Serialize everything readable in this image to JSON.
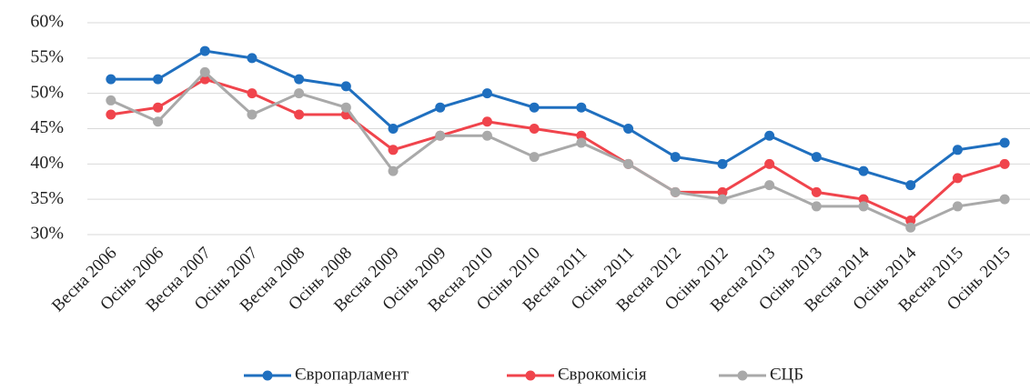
{
  "chart_data": {
    "type": "line",
    "categories": [
      "Весна 2006",
      "Осінь 2006",
      "Весна 2007",
      "Осінь 2007",
      "Весна 2008",
      "Осінь 2008",
      "Весна 2009",
      "Осінь 2009",
      "Весна 2010",
      "Осінь 2010",
      "Весна 2011",
      "Осінь 2011",
      "Весна 2012",
      "Осінь 2012",
      "Весна 2013",
      "Осінь 2013",
      "Весна 2014",
      "Осінь 2014",
      "Весна 2015",
      "Осінь 2015"
    ],
    "series": [
      {
        "name": "Європарламент",
        "color": "#1f6fbf",
        "values": [
          52,
          52,
          56,
          55,
          52,
          51,
          45,
          48,
          50,
          48,
          48,
          45,
          41,
          40,
          44,
          41,
          39,
          37,
          42,
          43
        ]
      },
      {
        "name": "Єврокомісія",
        "color": "#f0444c",
        "values": [
          47,
          48,
          52,
          50,
          47,
          47,
          42,
          44,
          46,
          45,
          44,
          40,
          36,
          36,
          40,
          36,
          35,
          32,
          38,
          40
        ]
      },
      {
        "name": "ЄЦБ",
        "color": "#a9a9a9",
        "values": [
          49,
          46,
          53,
          47,
          50,
          48,
          39,
          44,
          44,
          41,
          43,
          40,
          36,
          35,
          37,
          34,
          34,
          31,
          34,
          35
        ]
      }
    ],
    "ylim": [
      30,
      60
    ],
    "yticks": [
      {
        "value": 30,
        "label": "30%"
      },
      {
        "value": 35,
        "label": "35%"
      },
      {
        "value": 40,
        "label": "40%"
      },
      {
        "value": 45,
        "label": "45%"
      },
      {
        "value": 50,
        "label": "50%"
      },
      {
        "value": 55,
        "label": "55%"
      },
      {
        "value": 60,
        "label": "60%"
      }
    ],
    "grid": true,
    "legend": "bottom"
  }
}
